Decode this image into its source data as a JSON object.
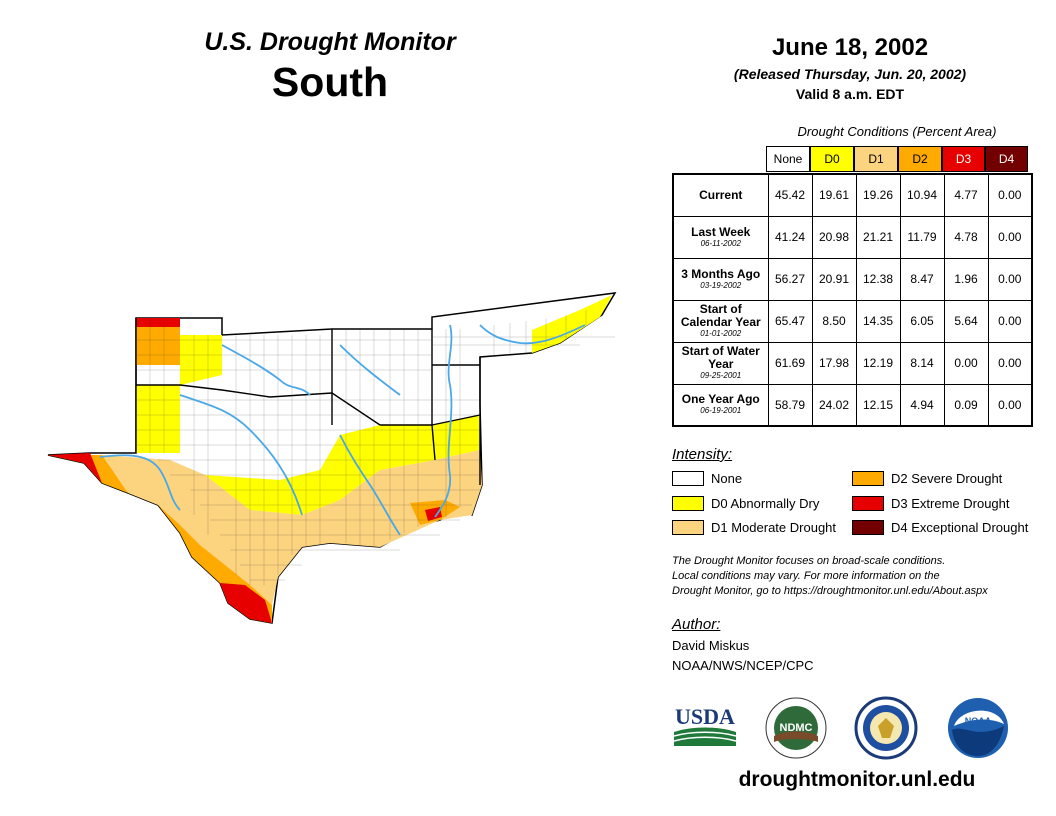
{
  "header": {
    "product": "U.S. Drought Monitor",
    "region": "South",
    "date": "June 18, 2002",
    "released": "(Released Thursday, Jun. 20, 2002)",
    "valid": "Valid 8 a.m. EDT"
  },
  "table": {
    "caption": "Drought Conditions (Percent Area)",
    "columns": [
      "None",
      "D0",
      "D1",
      "D2",
      "D3",
      "D4"
    ],
    "column_colors": [
      "#ffffff",
      "#ffff00",
      "#fcd37f",
      "#ffaa00",
      "#e60000",
      "#730000"
    ],
    "rows": [
      {
        "label": "Current",
        "date": "",
        "values": [
          "45.42",
          "19.61",
          "19.26",
          "10.94",
          "4.77",
          "0.00"
        ]
      },
      {
        "label": "Last Week",
        "date": "06-11-2002",
        "values": [
          "41.24",
          "20.98",
          "21.21",
          "11.79",
          "4.78",
          "0.00"
        ]
      },
      {
        "label": "3 Months Ago",
        "date": "03-19-2002",
        "values": [
          "56.27",
          "20.91",
          "12.38",
          "8.47",
          "1.96",
          "0.00"
        ]
      },
      {
        "label": "Start of Calendar Year",
        "date": "01-01-2002",
        "values": [
          "65.47",
          "8.50",
          "14.35",
          "6.05",
          "5.64",
          "0.00"
        ]
      },
      {
        "label": "Start of Water Year",
        "date": "09-25-2001",
        "values": [
          "61.69",
          "17.98",
          "12.19",
          "8.14",
          "0.00",
          "0.00"
        ]
      },
      {
        "label": "One Year Ago",
        "date": "06-19-2001",
        "values": [
          "58.79",
          "24.02",
          "12.15",
          "4.94",
          "0.09",
          "0.00"
        ]
      }
    ]
  },
  "legend": {
    "title": "Intensity:",
    "items": [
      {
        "label": "None",
        "color": "#ffffff"
      },
      {
        "label": "D0 Abnormally Dry",
        "color": "#ffff00"
      },
      {
        "label": "D1 Moderate Drought",
        "color": "#fcd37f"
      },
      {
        "label": "D2 Severe Drought",
        "color": "#ffaa00"
      },
      {
        "label": "D3 Extreme Drought",
        "color": "#e60000"
      },
      {
        "label": "D4 Exceptional Drought",
        "color": "#730000"
      }
    ]
  },
  "note": {
    "line1": "The Drought Monitor focuses on broad-scale conditions.",
    "line2": "Local conditions may vary. For more information on the",
    "line3": "Drought Monitor, go to https://droughtmonitor.unl.edu/About.aspx"
  },
  "author": {
    "title": "Author:",
    "name": "David Miskus",
    "org": "NOAA/NWS/NCEP/CPC"
  },
  "logos": {
    "usda": "USDA",
    "ndmc": "NDMC",
    "noaa": "NOAA"
  },
  "footer": {
    "url": "droughtmonitor.unl.edu"
  },
  "map_colors": {
    "none": "#ffffff",
    "d0": "#ffff00",
    "d1": "#fcd37f",
    "d2": "#ffaa00",
    "d3": "#e60000",
    "d4": "#730000",
    "river": "#4aa8e8"
  }
}
